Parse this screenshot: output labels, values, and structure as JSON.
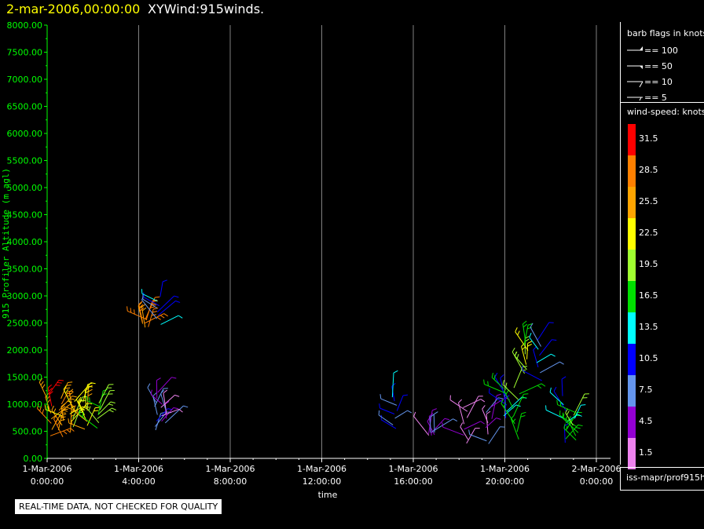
{
  "header": {
    "date": "2-mar-2006,00:00:00",
    "name": "XYWind:915winds."
  },
  "legend": {
    "barb_title": "barb flags in knots",
    "barb_entries": [
      "== 100",
      "== 50",
      "== 10",
      "== 5"
    ],
    "speed_title": "wind-speed: knots",
    "speed_scale": [
      {
        "label": "31.5",
        "color": "#ff0000"
      },
      {
        "label": "28.5",
        "color": "#ff8000"
      },
      {
        "label": "25.5",
        "color": "#ffa500"
      },
      {
        "label": "22.5",
        "color": "#ffff00"
      },
      {
        "label": "19.5",
        "color": "#a0ff30"
      },
      {
        "label": "16.5",
        "color": "#00e000"
      },
      {
        "label": "13.5",
        "color": "#00ffff"
      },
      {
        "label": "10.5",
        "color": "#0000ff"
      },
      {
        "label": "7.5",
        "color": "#6495ed"
      },
      {
        "label": "4.5",
        "color": "#9400d3"
      },
      {
        "label": "1.5",
        "color": "#ee82ee"
      }
    ]
  },
  "source": "iss-mapr/prof915h",
  "quality_note": "REAL-TIME DATA, NOT CHECKED FOR QUALITY",
  "colors": {
    "axis": "#00ff00",
    "time_axis": "#ffffff",
    "grid": "#808080",
    "title_date": "#ffff00"
  },
  "chart_data": {
    "type": "scatter",
    "ylabel": "915 Profiler Altitude (m agl)",
    "xlabel": "time",
    "y_ticks": [
      "0.00",
      "500.00",
      "1000.00",
      "1500.00",
      "2000.00",
      "2500.00",
      "3000.00",
      "3500.00",
      "4000.00",
      "4500.00",
      "5000.00",
      "5500.00",
      "6000.00",
      "6500.00",
      "7000.00",
      "7500.00",
      "8000.00"
    ],
    "ylim": [
      0,
      8000
    ],
    "xlim_hours": [
      0,
      24
    ],
    "x_ticks": [
      {
        "hour": 0,
        "date": "1-Mar-2006",
        "time": "0:00:00"
      },
      {
        "hour": 4,
        "date": "1-Mar-2006",
        "time": "4:00:00"
      },
      {
        "hour": 8,
        "date": "1-Mar-2006",
        "time": "8:00:00"
      },
      {
        "hour": 12,
        "date": "1-Mar-2006",
        "time": "12:00:00"
      },
      {
        "hour": 16,
        "date": "1-Mar-2006",
        "time": "16:00:00"
      },
      {
        "hour": 20,
        "date": "1-Mar-2006",
        "time": "20:00:00"
      },
      {
        "hour": 24,
        "date": "2-Mar-2006",
        "time": "0:00:00"
      }
    ],
    "grid": true,
    "clusters": [
      {
        "hour": 0.1,
        "alt_min": 350,
        "alt_max": 1250,
        "speed": 28.5
      },
      {
        "hour": 0.6,
        "alt_min": 350,
        "alt_max": 1150,
        "speed": 25.5
      },
      {
        "hour": 1.1,
        "alt_min": 450,
        "alt_max": 1100,
        "speed": 22.5
      },
      {
        "hour": 1.7,
        "alt_min": 500,
        "alt_max": 1050,
        "speed": 22.5
      },
      {
        "hour": 2.3,
        "alt_min": 550,
        "alt_max": 1050,
        "speed": 19.5
      },
      {
        "hour": 4.3,
        "alt_min": 2400,
        "alt_max": 2600,
        "speed": 25.5
      },
      {
        "hour": 4.9,
        "alt_min": 2450,
        "alt_max": 3000,
        "speed": 10.5
      },
      {
        "hour": 4.7,
        "alt_min": 450,
        "alt_max": 1300,
        "speed": 7.5
      },
      {
        "hour": 5.1,
        "alt_min": 600,
        "alt_max": 1000,
        "speed": 4.5
      },
      {
        "hour": 15.2,
        "alt_min": 500,
        "alt_max": 1200,
        "speed": 10.5
      },
      {
        "hour": 16.8,
        "alt_min": 400,
        "alt_max": 500,
        "speed": 4.5
      },
      {
        "hour": 18.3,
        "alt_min": 200,
        "alt_max": 1000,
        "speed": 1.5
      },
      {
        "hour": 19.3,
        "alt_min": 200,
        "alt_max": 1000,
        "speed": 4.5
      },
      {
        "hour": 20.0,
        "alt_min": 700,
        "alt_max": 1300,
        "speed": 13.5
      },
      {
        "hour": 20.5,
        "alt_min": 300,
        "alt_max": 1400,
        "speed": 16.5
      },
      {
        "hour": 20.9,
        "alt_min": 1500,
        "alt_max": 2200,
        "speed": 19.5
      },
      {
        "hour": 21.5,
        "alt_min": 1400,
        "alt_max": 2250,
        "speed": 10.5
      },
      {
        "hour": 22.6,
        "alt_min": 200,
        "alt_max": 1200,
        "speed": 13.5
      },
      {
        "hour": 23.1,
        "alt_min": 300,
        "alt_max": 900,
        "speed": 16.5
      }
    ]
  }
}
